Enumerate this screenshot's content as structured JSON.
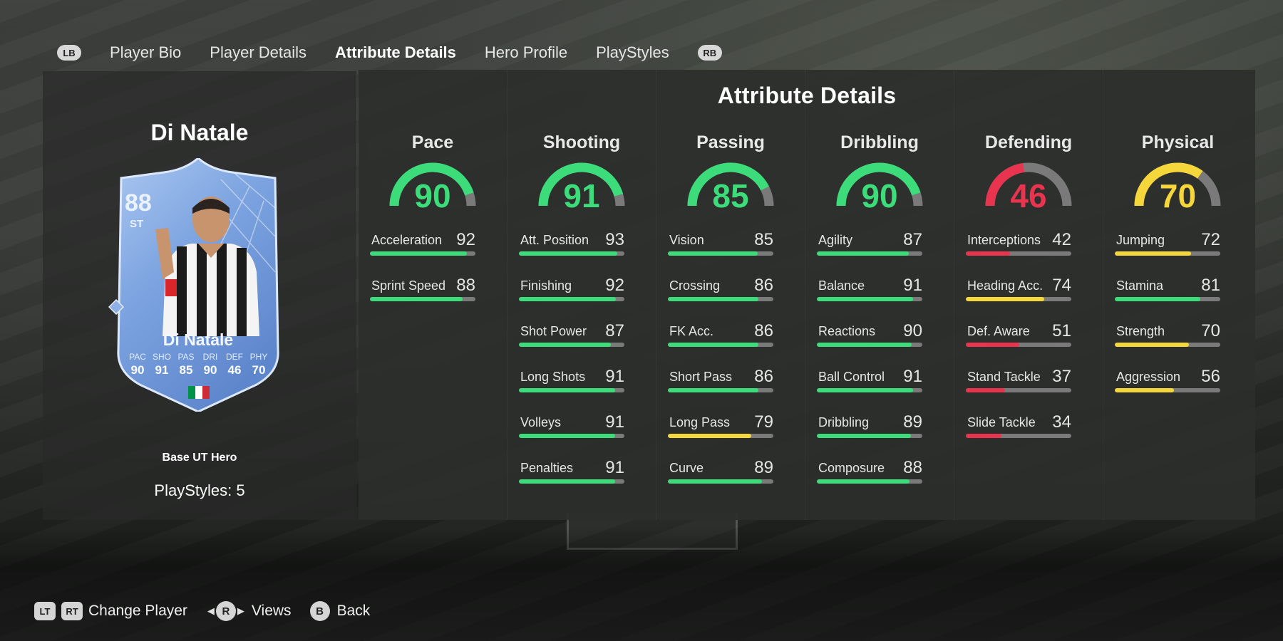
{
  "nav": {
    "left_bumper": "LB",
    "right_bumper": "RB",
    "tabs": [
      {
        "label": "Player Bio"
      },
      {
        "label": "Player Details"
      },
      {
        "label": "Attribute Details"
      },
      {
        "label": "Hero Profile"
      },
      {
        "label": "PlayStyles"
      }
    ],
    "active_tab": "Attribute Details"
  },
  "player": {
    "name": "Di Natale",
    "version": "Base UT Hero",
    "playstyles_label": "PlayStyles: 5",
    "card": {
      "rating": "88",
      "position": "ST",
      "name": "Di Natale",
      "stats": [
        {
          "abbr": "PAC",
          "value": "90"
        },
        {
          "abbr": "SHO",
          "value": "91"
        },
        {
          "abbr": "PAS",
          "value": "85"
        },
        {
          "abbr": "DRI",
          "value": "90"
        },
        {
          "abbr": "DEF",
          "value": "46"
        },
        {
          "abbr": "PHY",
          "value": "70"
        }
      ],
      "flag_colors": [
        "#009246",
        "#ffffff",
        "#ce2b37"
      ]
    }
  },
  "attributes": {
    "title": "Attribute Details",
    "colors": {
      "high": "#3ddc7a",
      "mid": "#f5d63b",
      "low": "#e8344e",
      "track": "#7a7a7a"
    },
    "categories": [
      {
        "name": "Pace",
        "value": "90",
        "stats": [
          {
            "label": "Acceleration",
            "value": "92"
          },
          {
            "label": "Sprint Speed",
            "value": "88"
          }
        ]
      },
      {
        "name": "Shooting",
        "value": "91",
        "stats": [
          {
            "label": "Att. Position",
            "value": "93"
          },
          {
            "label": "Finishing",
            "value": "92"
          },
          {
            "label": "Shot Power",
            "value": "87"
          },
          {
            "label": "Long Shots",
            "value": "91"
          },
          {
            "label": "Volleys",
            "value": "91"
          },
          {
            "label": "Penalties",
            "value": "91"
          }
        ]
      },
      {
        "name": "Passing",
        "value": "85",
        "stats": [
          {
            "label": "Vision",
            "value": "85"
          },
          {
            "label": "Crossing",
            "value": "86"
          },
          {
            "label": "FK Acc.",
            "value": "86"
          },
          {
            "label": "Short Pass",
            "value": "86"
          },
          {
            "label": "Long Pass",
            "value": "79"
          },
          {
            "label": "Curve",
            "value": "89"
          }
        ]
      },
      {
        "name": "Dribbling",
        "value": "90",
        "stats": [
          {
            "label": "Agility",
            "value": "87"
          },
          {
            "label": "Balance",
            "value": "91"
          },
          {
            "label": "Reactions",
            "value": "90"
          },
          {
            "label": "Ball Control",
            "value": "91"
          },
          {
            "label": "Dribbling",
            "value": "89"
          },
          {
            "label": "Composure",
            "value": "88"
          }
        ]
      },
      {
        "name": "Defending",
        "value": "46",
        "stats": [
          {
            "label": "Interceptions",
            "value": "42"
          },
          {
            "label": "Heading Acc.",
            "value": "74"
          },
          {
            "label": "Def. Aware",
            "value": "51"
          },
          {
            "label": "Stand Tackle",
            "value": "37"
          },
          {
            "label": "Slide Tackle",
            "value": "34"
          }
        ]
      },
      {
        "name": "Physical",
        "value": "70",
        "stats": [
          {
            "label": "Jumping",
            "value": "72"
          },
          {
            "label": "Stamina",
            "value": "81"
          },
          {
            "label": "Strength",
            "value": "70"
          },
          {
            "label": "Aggression",
            "value": "56"
          }
        ]
      }
    ]
  },
  "controls": {
    "lt": "LT",
    "rt": "RT",
    "change_player": "Change Player",
    "r_stick": "R",
    "views": "Views",
    "b_button": "B",
    "back": "Back"
  }
}
